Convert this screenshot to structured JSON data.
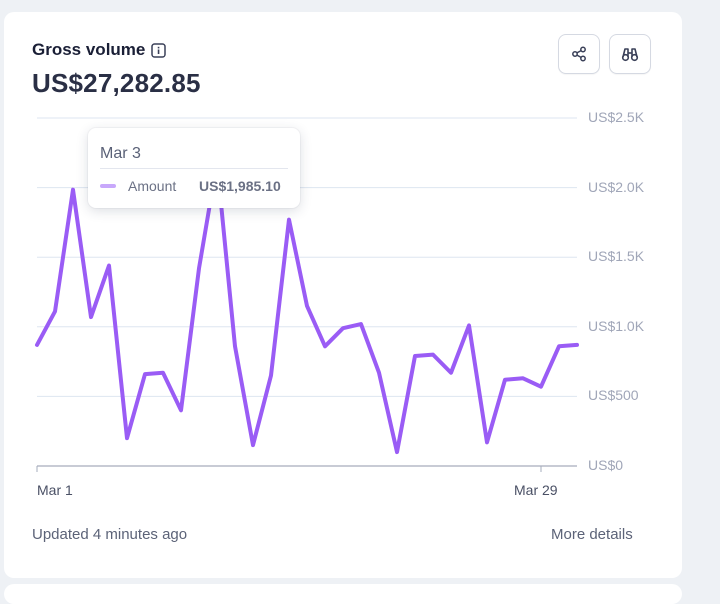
{
  "card": {
    "title": "Gross volume",
    "total": "US$27,282.85",
    "footer_updated": "Updated 4 minutes ago",
    "footer_link": "More details",
    "icons": {
      "info": "info-icon",
      "share": "share-icon",
      "explore": "binoculars-icon"
    }
  },
  "tooltip": {
    "date": "Mar 3",
    "series_name": "Amount",
    "value": "US$1,985.10"
  },
  "colors": {
    "line": "#9a5cf5",
    "tooltip_swatch": "#c8a8fb",
    "grid": "#dde6f0"
  },
  "chart_data": {
    "type": "line",
    "x_start_label": "Mar 1",
    "x_end_label": "Mar 29",
    "x_labels": [
      "Mar 1",
      "Mar 29"
    ],
    "y_tick_labels": [
      "US$0",
      "US$500",
      "US$1.0K",
      "US$1.5K",
      "US$2.0K",
      "US$2.5K"
    ],
    "y_ticks": [
      0,
      500,
      1000,
      1500,
      2000,
      2500
    ],
    "ylim": [
      0,
      2500
    ],
    "grid": true,
    "series": [
      {
        "name": "Amount",
        "values": [
          870,
          1110,
          1985,
          1070,
          1440,
          200,
          660,
          670,
          400,
          1420,
          2180,
          860,
          150,
          650,
          1770,
          1150,
          860,
          990,
          1020,
          670,
          100,
          790,
          800,
          670,
          1010,
          170,
          620,
          630,
          570,
          860,
          870
        ]
      }
    ]
  }
}
